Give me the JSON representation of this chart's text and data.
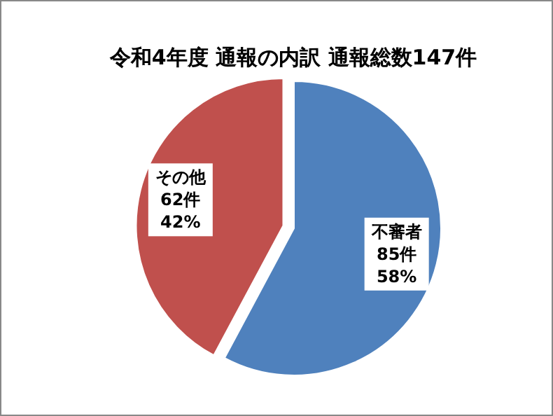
{
  "chart_data": {
    "type": "pie",
    "title": "令和4年度 通報の内訳 通報総数147件",
    "categories": [
      "不審者",
      "その他"
    ],
    "values": [
      85,
      62
    ],
    "value_labels": [
      "85件\n58%",
      "62件\n42%"
    ],
    "colors": [
      "#4f81bd",
      "#c0504d"
    ]
  }
}
